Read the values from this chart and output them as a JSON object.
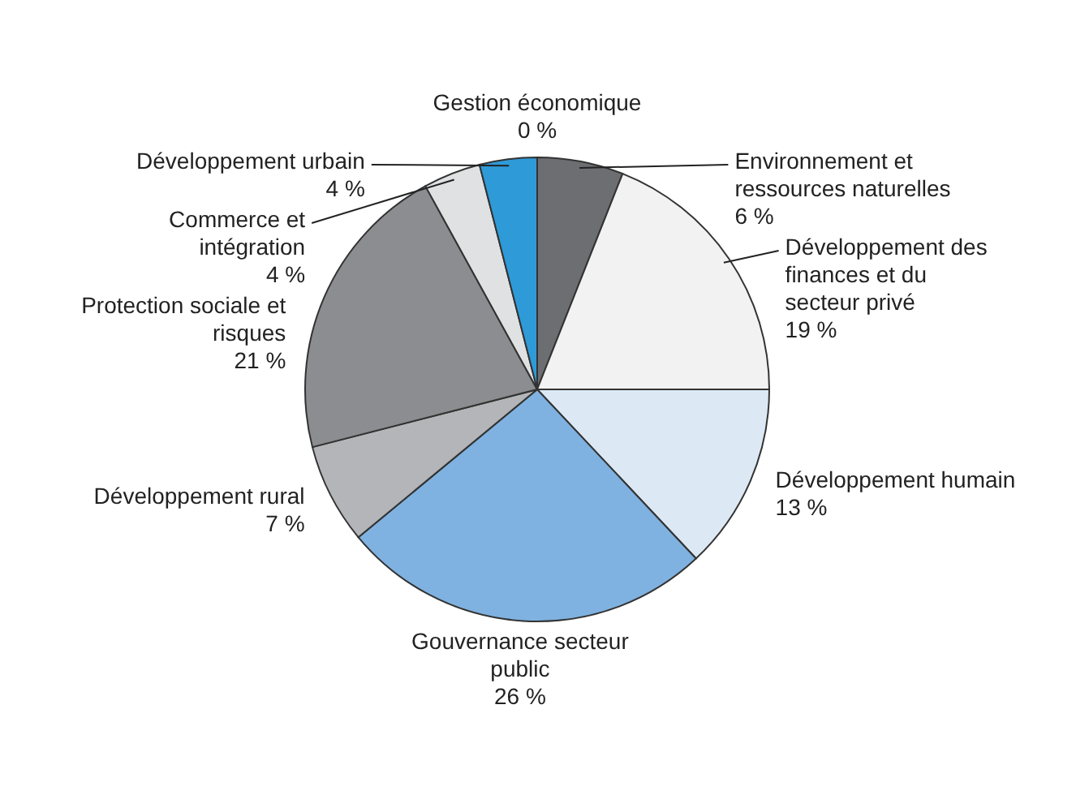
{
  "chart_data": {
    "type": "pie",
    "categories": [
      "Gestion économique",
      "Environnement et ressources naturelles",
      "Développement des finances et du secteur privé",
      "Développement humain",
      "Gouvernance secteur public",
      "Développement rural",
      "Protection sociale et risques",
      "Commerce et intégration",
      "Développement urbain"
    ],
    "values": [
      0,
      6,
      19,
      13,
      26,
      7,
      21,
      4,
      4
    ],
    "value_labels": [
      "0 %",
      "6 %",
      "19 %",
      "13 %",
      "26 %",
      "7 %",
      "21 %",
      "4 %",
      "4 %"
    ],
    "colors": [
      "#ffffff",
      "#6d6e71",
      "#f2f2f2",
      "#dce9f5",
      "#7fb2e0",
      "#b3b5b8",
      "#8c8d90",
      "#e0e1e2",
      "#2f9ad8"
    ]
  }
}
